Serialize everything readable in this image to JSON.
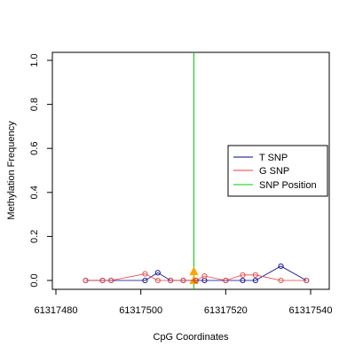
{
  "chart_data": {
    "type": "scatter",
    "xlabel": "CpG Coordinates",
    "ylabel": "Methylation Frequency",
    "xlim": [
      61317480,
      61317545
    ],
    "ylim": [
      0,
      1
    ],
    "x_ticks": [
      61317480,
      61317500,
      61317520,
      61317540
    ],
    "x_tick_labels": [
      "61317480",
      "61317500",
      "61317520",
      "61317540"
    ],
    "y_ticks": [
      0.0,
      0.2,
      0.4,
      0.6,
      0.8,
      1.0
    ],
    "y_tick_labels": [
      "0.0",
      "0.2",
      "0.4",
      "0.6",
      "0.8",
      "1.0"
    ],
    "grid": false,
    "legend_position": "right",
    "series": [
      {
        "name": "T SNP",
        "color": "#00008B",
        "points": [
          [
            61317487,
            0.0
          ],
          [
            61317491,
            0.0
          ],
          [
            61317493,
            0.0
          ],
          [
            61317501,
            0.0
          ],
          [
            61317504,
            0.035
          ],
          [
            61317507,
            0.0
          ],
          [
            61317510,
            0.0
          ],
          [
            61317513,
            0.0
          ],
          [
            61317515,
            0.0
          ],
          [
            61317520,
            0.0
          ],
          [
            61317524,
            0.0
          ],
          [
            61317527,
            0.0
          ],
          [
            61317533,
            0.065
          ],
          [
            61317539,
            0.0
          ]
        ]
      },
      {
        "name": "G SNP",
        "color": "#E04040",
        "points": [
          [
            61317487,
            0.0
          ],
          [
            61317491,
            0.0
          ],
          [
            61317493,
            0.0
          ],
          [
            61317501,
            0.03
          ],
          [
            61317504,
            0.0
          ],
          [
            61317507,
            0.0
          ],
          [
            61317510,
            0.0
          ],
          [
            61317513,
            0.0
          ],
          [
            61317515,
            0.02
          ],
          [
            61317520,
            0.0
          ],
          [
            61317524,
            0.025
          ],
          [
            61317527,
            0.025
          ],
          [
            61317533,
            0.0
          ],
          [
            61317539,
            0.0
          ]
        ]
      }
    ],
    "snp_position": {
      "name": "SNP Position",
      "color": "#00CC00",
      "x": 61317512.5,
      "marker_color": "#FFA500",
      "marker_values": [
        0.0,
        0.04
      ]
    }
  }
}
